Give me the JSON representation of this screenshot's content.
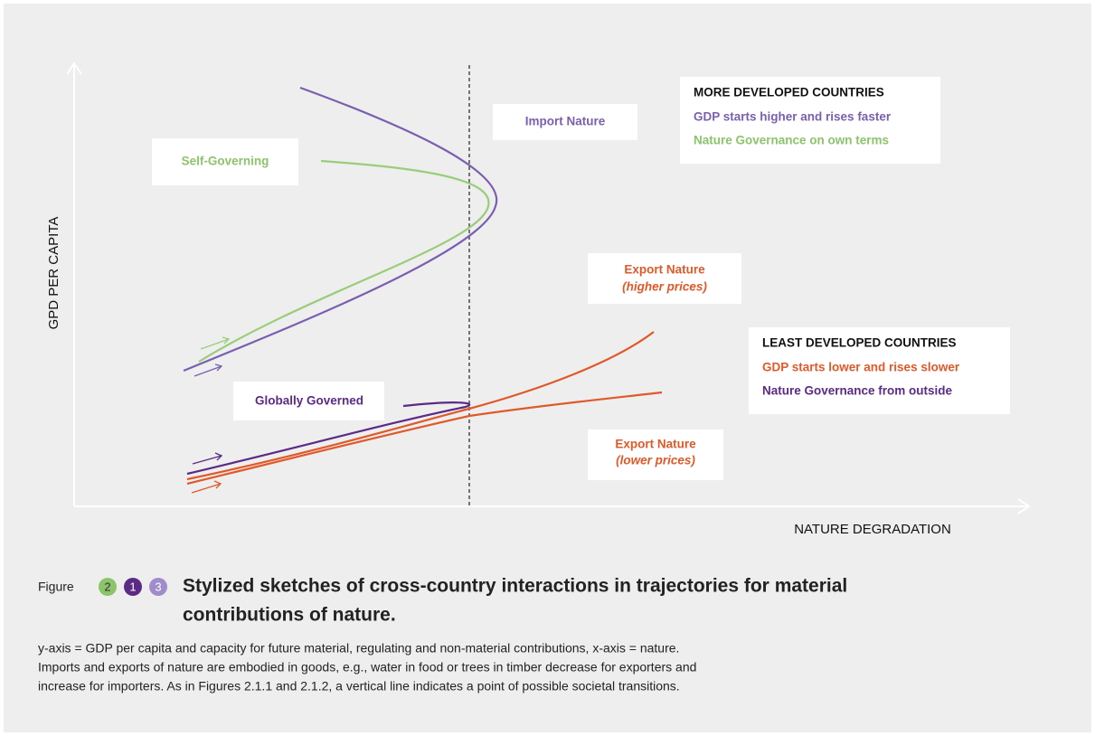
{
  "diagram": {
    "y_axis_label": "GPD PER CAPITA",
    "x_axis_label": "NATURE DEGRADATION",
    "labels": {
      "self_governing": "Self-Governing",
      "import_nature": "Import Nature",
      "globally_governed": "Globally Governed",
      "export_higher": [
        "Export Nature",
        "(higher prices)"
      ],
      "export_lower": [
        "Export Nature",
        "(lower prices)"
      ]
    },
    "more_developed": {
      "title": "MORE DEVELOPED COUNTRIES",
      "lines": [
        "GDP starts higher and rises faster",
        "Nature Governance on own terms"
      ]
    },
    "least_developed": {
      "title": "LEAST DEVELOPED COUNTRIES",
      "lines": [
        "GDP starts lower and rises slower",
        "Nature Governance from outside"
      ]
    }
  },
  "caption": {
    "prefix": "Figure",
    "numbers": [
      "2",
      "1",
      "3"
    ],
    "title": [
      "Stylized sketches of cross-country interactions in trajectories for material",
      "contributions of nature."
    ],
    "body": [
      "y-axis = GDP per capita and capacity for future material, regulating and non-material contributions, x-axis = nature.",
      "Imports and exports of nature are embodied in goods, e.g., water in food or trees in timber decrease for exporters and",
      "increase for importers. As in Figures 2.1.1 and 2.1.2, a vertical line indicates a point of possible societal transitions."
    ]
  }
}
